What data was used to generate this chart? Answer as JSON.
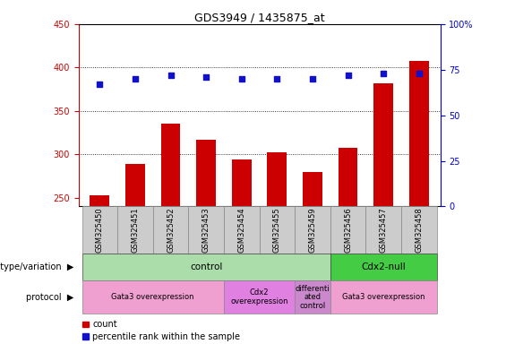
{
  "title": "GDS3949 / 1435875_at",
  "samples": [
    "GSM325450",
    "GSM325451",
    "GSM325452",
    "GSM325453",
    "GSM325454",
    "GSM325455",
    "GSM325459",
    "GSM325456",
    "GSM325457",
    "GSM325458"
  ],
  "counts": [
    253,
    289,
    335,
    317,
    294,
    302,
    280,
    307,
    382,
    408
  ],
  "percentile_ranks": [
    67,
    70,
    72,
    71,
    70,
    70,
    70,
    72,
    73,
    73
  ],
  "ylim_left": [
    240,
    450
  ],
  "ylim_right": [
    0,
    100
  ],
  "yticks_left": [
    250,
    300,
    350,
    400,
    450
  ],
  "yticks_right": [
    0,
    25,
    50,
    75,
    100
  ],
  "grid_lines": [
    300,
    350,
    400
  ],
  "bar_color": "#cc0000",
  "dot_color": "#1111cc",
  "left_axis_color": "#cc0000",
  "right_axis_color": "#0000cc",
  "genotype_groups": [
    {
      "label": "control",
      "start": 0,
      "end": 7,
      "color": "#aaddaa"
    },
    {
      "label": "Cdx2-null",
      "start": 7,
      "end": 10,
      "color": "#44cc44"
    }
  ],
  "protocol_groups": [
    {
      "label": "Gata3 overexpression",
      "start": 0,
      "end": 4,
      "color": "#f0a0d0"
    },
    {
      "label": "Cdx2\noverexpression",
      "start": 4,
      "end": 6,
      "color": "#e080e0"
    },
    {
      "label": "differenti\nated\ncontrol",
      "start": 6,
      "end": 7,
      "color": "#cc88cc"
    },
    {
      "label": "Gata3 overexpression",
      "start": 7,
      "end": 10,
      "color": "#f0a0d0"
    }
  ],
  "sample_bg": "#cccccc",
  "bar_width": 0.55,
  "dot_size": 25,
  "font_size_tick": 7,
  "font_size_label": 7,
  "font_size_title": 9,
  "font_size_annot": 7,
  "legend_color_red": "#cc0000",
  "legend_color_blue": "#1111cc"
}
